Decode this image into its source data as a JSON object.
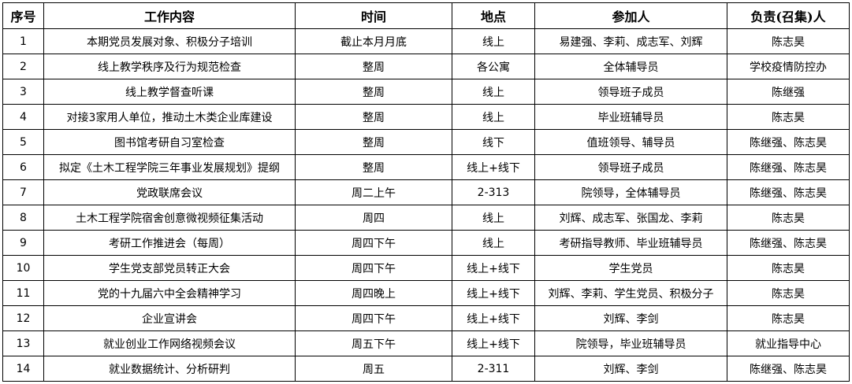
{
  "headers": [
    "序号",
    "工作内容",
    "时间",
    "地点",
    "参加人",
    "负责(召集)人"
  ],
  "rows": [
    [
      "1",
      "本期党员发展对象、积极分子培训",
      "截止本月月底",
      "线上",
      "易建强、李莉、成志军、刘辉",
      "陈志昊"
    ],
    [
      "2",
      "线上教学秩序及行为规范检查",
      "整周",
      "各公寓",
      "全体辅导员",
      "学校疫情防控办"
    ],
    [
      "3",
      "线上教学督查听课",
      "整周",
      "线上",
      "领导班子成员",
      "陈继强"
    ],
    [
      "4",
      "对接3家用人单位，推动土木类企业库建设",
      "整周",
      "线上",
      "毕业班辅导员",
      "陈志昊"
    ],
    [
      "5",
      "图书馆考研自习室检查",
      "整周",
      "线下",
      "值班领导、辅导员",
      "陈继强、陈志昊"
    ],
    [
      "6",
      "拟定《土木工程学院三年事业发展规划》提纲",
      "整周",
      "线上+线下",
      "领导班子成员",
      "陈继强、陈志昊"
    ],
    [
      "7",
      "党政联席会议",
      "周二上午",
      "2-313",
      "院领导，全体辅导员",
      "陈继强、陈志昊"
    ],
    [
      "8",
      "土木工程学院宿舍创意微视频征集活动",
      "周四",
      "线上",
      "刘辉、成志军、张国龙、李莉",
      "陈志昊"
    ],
    [
      "9",
      "考研工作推进会（每周）",
      "周四下午",
      "线上",
      "考研指导教师、毕业班辅导员",
      "陈继强、陈志昊"
    ],
    [
      "10",
      "学生党支部党员转正大会",
      "周四下午",
      "线上+线下",
      "学生党员",
      "陈志昊"
    ],
    [
      "11",
      "党的十九届六中全会精神学习",
      "周四晚上",
      "线上+线下",
      "刘辉、李莉、学生党员、积极分子",
      "陈志昊"
    ],
    [
      "12",
      "企业宣讲会",
      "周四下午",
      "线上+线下",
      "刘辉、李剑",
      "陈志昊"
    ],
    [
      "13",
      "就业创业工作网络视频会议",
      "周五下午",
      "线上+线下",
      "院领导，毕业班辅导员",
      "就业指导中心"
    ],
    [
      "14",
      "就业数据统计、分析研判",
      "周五",
      "2-311",
      "刘辉、李剑",
      "陈继强、陈志昊"
    ]
  ]
}
